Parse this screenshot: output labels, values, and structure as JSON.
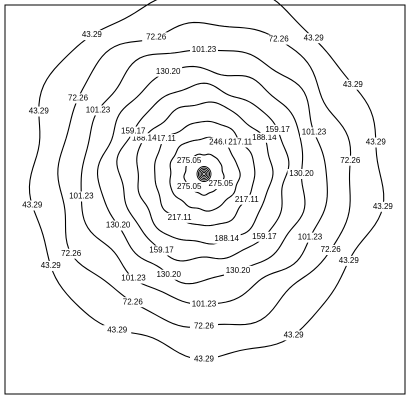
{
  "chart_data": {
    "type": "contour",
    "title": "",
    "xlabel": "",
    "ylabel": "",
    "grid": false,
    "levels": [
      {
        "value": 275.05,
        "labels": [
          "275.05",
          "275.05",
          "275.05"
        ]
      },
      {
        "value": 246.08,
        "labels": [
          "246.08"
        ]
      },
      {
        "value": 217.11,
        "labels": [
          "217.11",
          "217.11",
          "217.11",
          "217.11"
        ]
      },
      {
        "value": 188.14,
        "labels": [
          "188.14",
          "188.14",
          "188.14"
        ]
      },
      {
        "value": 159.17,
        "labels": [
          "159.17",
          "159.17",
          "159.17",
          "159.17"
        ]
      },
      {
        "value": 130.2,
        "labels": [
          "130.20",
          "130.20",
          "130.20",
          "130.20",
          "130.20"
        ]
      },
      {
        "value": 101.23,
        "labels": [
          "101.23",
          "101.23",
          "101.23",
          "101.23",
          "101.23",
          "101.23",
          "101.23"
        ]
      },
      {
        "value": 72.26,
        "labels": [
          "72.26",
          "72.26",
          "72.26",
          "72.26",
          "72.26",
          "72.26",
          "72.26",
          "72.26"
        ]
      },
      {
        "value": 43.29,
        "labels": [
          "43.29",
          "43.29",
          "43.29",
          "43.29",
          "43.29",
          "43.29",
          "43.29",
          "43.29",
          "43.29",
          "43.29",
          "43.29",
          "43.29",
          "43.29",
          "43.29"
        ]
      }
    ],
    "peak": {
      "x": 0,
      "y": 0
    }
  }
}
